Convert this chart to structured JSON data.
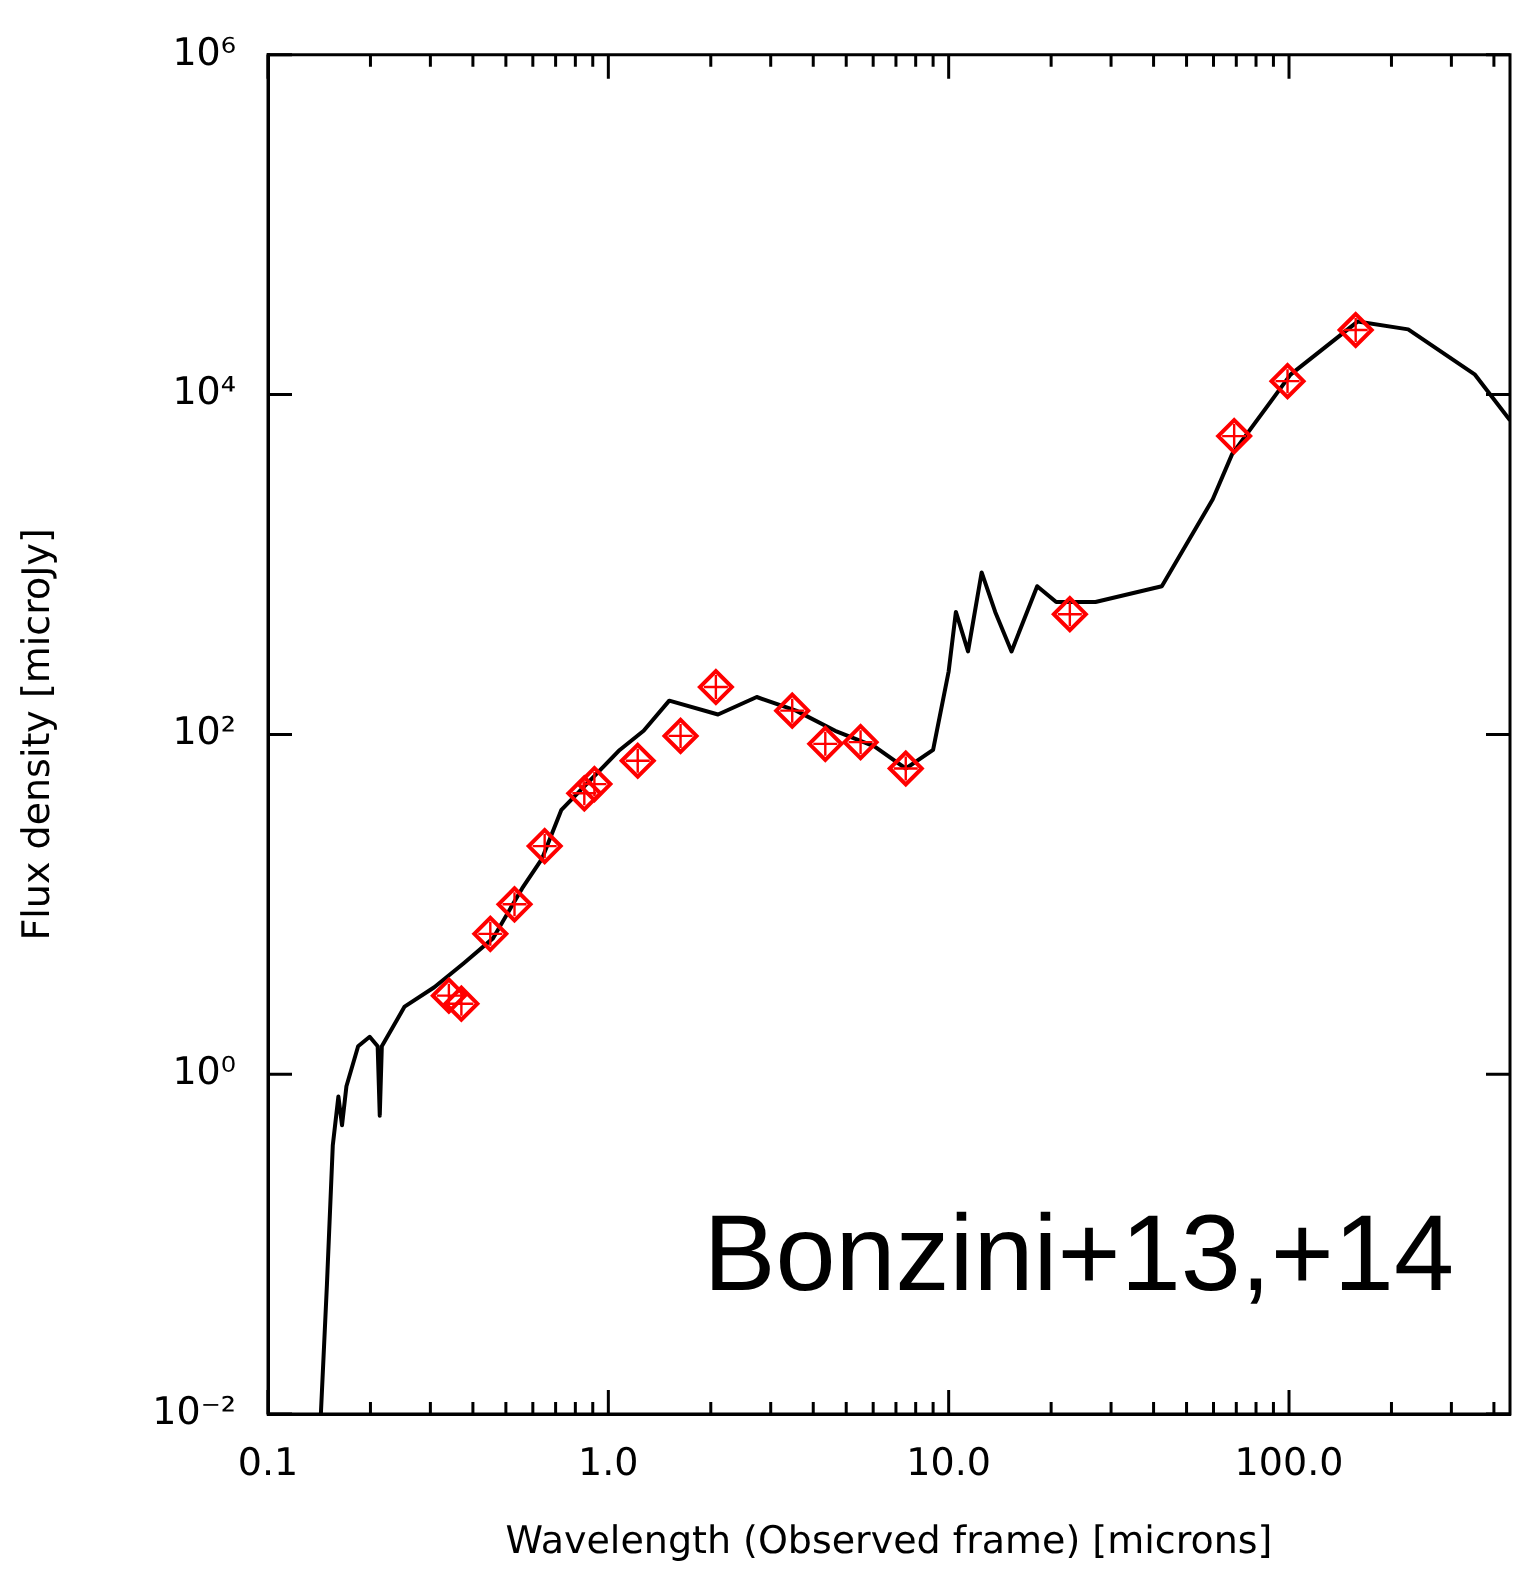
{
  "chart_data": {
    "type": "line",
    "xlabel": "Wavelength (Observed frame) [microns]",
    "ylabel": "Flux density [microJy]",
    "log": "xy",
    "grid": false,
    "legend": false,
    "xlim": [
      0.1,
      446
    ],
    "ylim": [
      0.01,
      1000000
    ],
    "xticks": [
      {
        "value": 0.1,
        "label": "0.1"
      },
      {
        "value": 0.2,
        "label": null
      },
      {
        "value": 0.3,
        "label": null
      },
      {
        "value": 0.4,
        "label": null
      },
      {
        "value": 0.5,
        "label": null
      },
      {
        "value": 0.6,
        "label": null
      },
      {
        "value": 0.7,
        "label": null
      },
      {
        "value": 0.8,
        "label": null
      },
      {
        "value": 0.9,
        "label": null
      },
      {
        "value": 1,
        "label": "1.0"
      },
      {
        "value": 2,
        "label": null
      },
      {
        "value": 3,
        "label": null
      },
      {
        "value": 4,
        "label": null
      },
      {
        "value": 5,
        "label": null
      },
      {
        "value": 6,
        "label": null
      },
      {
        "value": 7,
        "label": null
      },
      {
        "value": 8,
        "label": null
      },
      {
        "value": 9,
        "label": null
      },
      {
        "value": 10,
        "label": "10.0"
      },
      {
        "value": 20,
        "label": null
      },
      {
        "value": 30,
        "label": null
      },
      {
        "value": 40,
        "label": null
      },
      {
        "value": 50,
        "label": null
      },
      {
        "value": 60,
        "label": null
      },
      {
        "value": 70,
        "label": null
      },
      {
        "value": 80,
        "label": null
      },
      {
        "value": 90,
        "label": null
      },
      {
        "value": 100,
        "label": "100.0"
      },
      {
        "value": 200,
        "label": null
      },
      {
        "value": 300,
        "label": null
      },
      {
        "value": 400,
        "label": null
      }
    ],
    "yticks": [
      {
        "value": 0.01,
        "label": "10⁻²"
      },
      {
        "value": 1,
        "label": "10⁰"
      },
      {
        "value": 100,
        "label": "10²"
      },
      {
        "value": 10000,
        "label": "10⁴"
      },
      {
        "value": 1000000,
        "label": "10⁶"
      }
    ],
    "annotations": [
      "Bonzini+13,+14"
    ],
    "series": [
      {
        "color": "#000000",
        "x": [
          0.143,
          0.149,
          0.155,
          0.161,
          0.165,
          0.17,
          0.184,
          0.199,
          0.21,
          0.213,
          0.216,
          0.252,
          0.308,
          0.376,
          0.458,
          0.558,
          0.638,
          0.728,
          0.887,
          1.08,
          1.27,
          1.51,
          2.1,
          2.73,
          3.56,
          4.64,
          6.05,
          7.48,
          9.0,
          10.0,
          10.5,
          11.4,
          12.5,
          13.7,
          15.3,
          18.2,
          20.7,
          27.0,
          42.3,
          59.7,
          68.1,
          101,
          159,
          224,
          352,
          446
        ],
        "values": [
          0.01,
          0.058,
          0.38,
          0.74,
          0.5,
          0.85,
          1.46,
          1.66,
          1.46,
          0.57,
          1.46,
          2.5,
          3.25,
          4.5,
          6.3,
          12.4,
          18.5,
          36,
          54,
          81,
          105,
          158,
          131,
          166,
          138,
          105,
          85,
          63,
          81,
          235,
          526,
          308,
          898,
          526,
          308,
          745,
          601,
          601,
          745,
          2420,
          4480,
          13100,
          26900,
          24200,
          13100,
          7060
        ]
      },
      {
        "type": "scatter",
        "color": "#ff0000",
        "marker": "diamond",
        "x": [
          0.34,
          0.37,
          0.45,
          0.53,
          0.65,
          0.85,
          0.91,
          1.22,
          1.63,
          2.07,
          3.47,
          4.34,
          5.51,
          7.48,
          22.7,
          69,
          99,
          157
        ],
        "values": [
          2.9,
          2.6,
          6.7,
          10,
          22,
          45,
          51,
          70,
          98,
          190,
          138,
          88,
          90,
          63,
          510,
          5700,
          12000,
          24000
        ]
      }
    ]
  }
}
